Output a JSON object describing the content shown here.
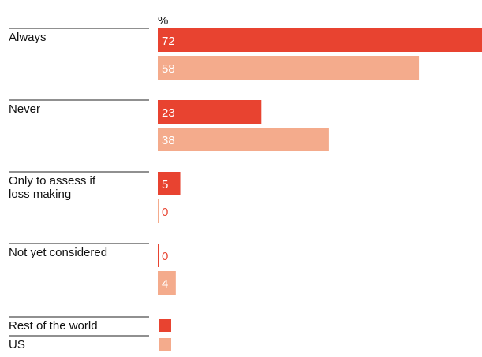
{
  "chart_data": {
    "type": "bar",
    "orientation": "horizontal",
    "unit_label": "%",
    "categories": [
      "Always",
      "Never",
      "Only to assess if loss making",
      "Not yet considered"
    ],
    "category_lines": [
      [
        "Always"
      ],
      [
        "Never"
      ],
      [
        "Only to assess if",
        "loss making"
      ],
      [
        "Not yet considered"
      ]
    ],
    "series": [
      {
        "name": "Rest of the world",
        "color": "#e84330",
        "values": [
          72,
          23,
          5,
          0
        ]
      },
      {
        "name": "US",
        "color": "#f4ab8c",
        "values": [
          58,
          38,
          0,
          4
        ]
      }
    ],
    "xlim": [
      0,
      72
    ],
    "grid": false,
    "legend": "bottom-left",
    "data_labels": true
  }
}
